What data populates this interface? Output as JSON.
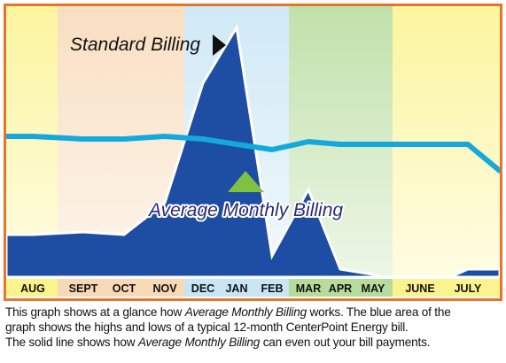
{
  "chart_data": {
    "type": "area",
    "categories": [
      "AUG",
      "SEPT",
      "OCT",
      "NOV",
      "DEC",
      "JAN",
      "FEB",
      "MAR",
      "APR",
      "MAY",
      "JUNE",
      "JULY"
    ],
    "series": [
      {
        "name": "Standard Billing",
        "kind": "area",
        "values": [
          0.2,
          0.21,
          0.2,
          0.32,
          0.77,
          0.98,
          0.12,
          0.37,
          0.07,
          0.05,
          -0.01,
          0.07
        ]
      },
      {
        "name": "Average Monthly Billing",
        "kind": "line",
        "values": [
          0.57,
          0.56,
          0.56,
          0.57,
          0.56,
          0.54,
          0.52,
          0.55,
          0.54,
          0.54,
          0.54,
          0.54
        ]
      }
    ],
    "seasons": [
      {
        "months": [
          "AUG"
        ],
        "color": "#fbf38e"
      },
      {
        "months": [
          "SEPT",
          "OCT",
          "NOV"
        ],
        "color": "#f8d9b6"
      },
      {
        "months": [
          "DEC",
          "JAN",
          "FEB"
        ],
        "color": "#c8e5f5"
      },
      {
        "months": [
          "MAR",
          "APR",
          "MAY"
        ],
        "color": "#b6dc9c"
      },
      {
        "months": [
          "JUNE",
          "JULY"
        ],
        "color": "#fbf38e"
      }
    ],
    "annotations": {
      "standard": "Standard Billing",
      "average": "Average Monthly Billing"
    },
    "colors": {
      "area": "#1e4da4",
      "line": "#14a9dc",
      "frame": "#e8742c",
      "average_marker": "#7fc242",
      "label_text": "#2a2a7a"
    }
  },
  "caption": {
    "line1_pre": "This graph shows at a glance how ",
    "line1_em": "Average Monthly Billing",
    "line1_post": " works. The blue area of the",
    "line2": "graph shows the highs and lows of a typical 12-month CenterPoint Energy bill.",
    "line3_pre": "The solid line shows how ",
    "line3_em": "Average Monthly Billing",
    "line3_post": " can even out your bill payments."
  }
}
